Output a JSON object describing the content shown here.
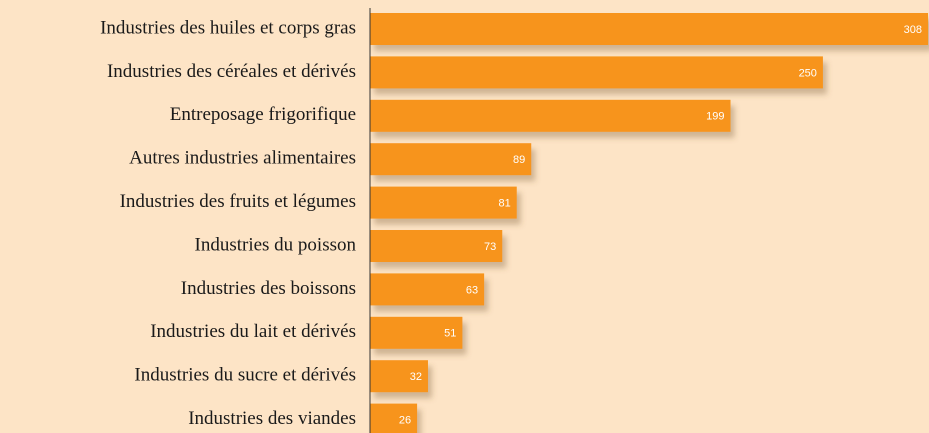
{
  "chart_data": {
    "type": "bar",
    "orientation": "horizontal",
    "categories": [
      "Industries des huiles et corps gras",
      "Industries des céréales et dérivés",
      "Entreposage frigorifique",
      "Autres industries alimentaires",
      "Industries des fruits et légumes",
      "Industries du poisson",
      "Industries des boissons",
      "Industries du lait et dérivés",
      "Industries du sucre et dérivés",
      "Industries des viandes"
    ],
    "values": [
      308,
      250,
      199,
      89,
      81,
      73,
      63,
      51,
      32,
      26
    ],
    "color": "#f7941d"
  }
}
